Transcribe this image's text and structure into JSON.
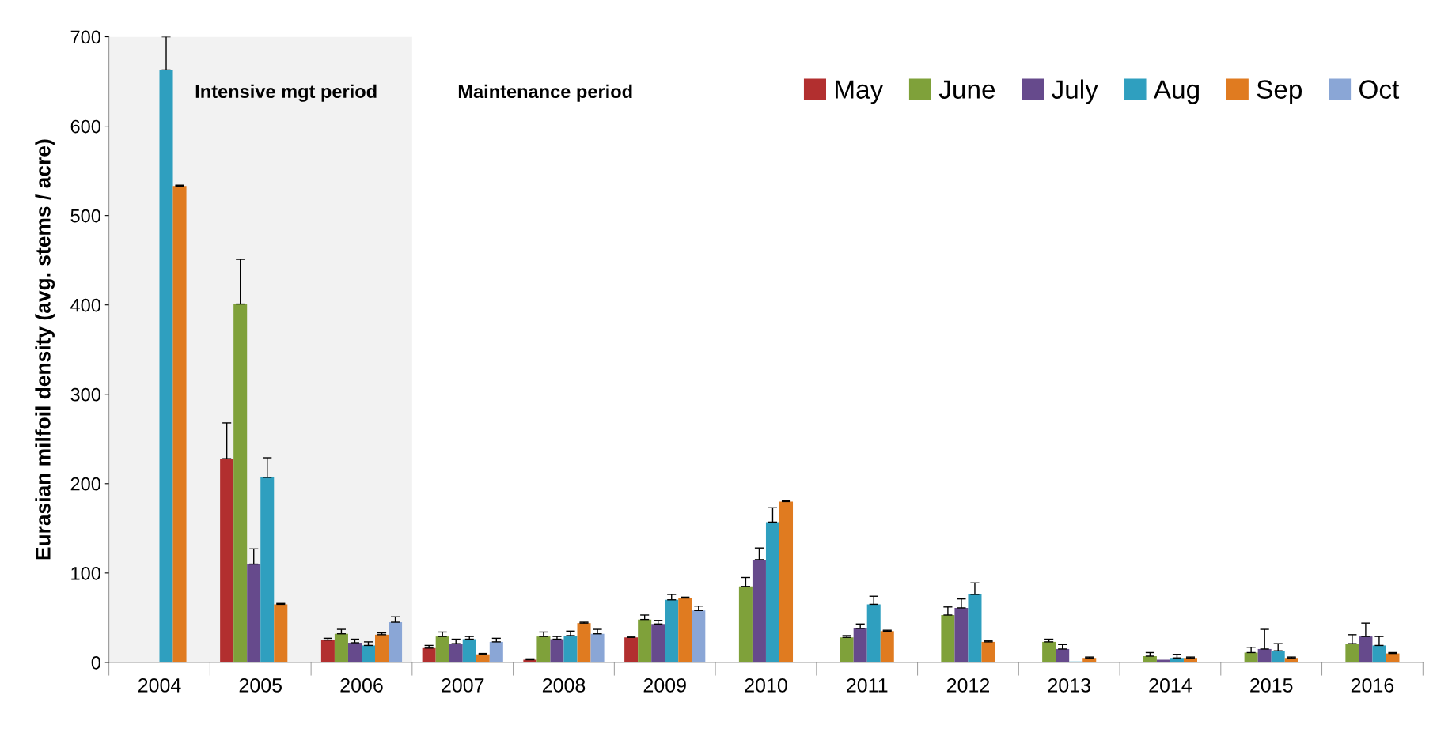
{
  "chart_data": {
    "type": "bar",
    "ylabel": "Eurasian milfoil density (avg. stems / acre)",
    "categories": [
      "2004",
      "2005",
      "2006",
      "2007",
      "2008",
      "2009",
      "2010",
      "2011",
      "2012",
      "2013",
      "2014",
      "2015",
      "2016"
    ],
    "series": [
      {
        "name": "May",
        "color": "#b22f2f",
        "values": [
          null,
          228,
          25,
          16,
          3,
          28,
          null,
          null,
          null,
          null,
          null,
          null,
          null
        ],
        "errors": [
          null,
          [
            228,
            268
          ],
          [
            25,
            27
          ],
          [
            16,
            19
          ],
          [
            3,
            4
          ],
          [
            28,
            29
          ],
          null,
          null,
          null,
          null,
          null,
          null,
          null
        ]
      },
      {
        "name": "June",
        "color": "#7fa13a",
        "values": [
          null,
          401,
          32,
          29,
          29,
          48,
          85,
          28,
          53,
          23,
          7,
          11,
          21
        ],
        "errors": [
          null,
          [
            401,
            451
          ],
          [
            32,
            37
          ],
          [
            29,
            34
          ],
          [
            29,
            34
          ],
          [
            48,
            53
          ],
          [
            85,
            95
          ],
          [
            28,
            30
          ],
          [
            53,
            62
          ],
          [
            23,
            26
          ],
          [
            7,
            11
          ],
          [
            11,
            17
          ],
          [
            21,
            31
          ]
        ]
      },
      {
        "name": "July",
        "color": "#664a8c",
        "values": [
          null,
          110,
          22,
          21,
          26,
          43,
          115,
          38,
          61,
          15,
          3,
          15,
          29
        ],
        "errors": [
          null,
          [
            110,
            127
          ],
          [
            22,
            26
          ],
          [
            21,
            26
          ],
          [
            26,
            29
          ],
          [
            43,
            47
          ],
          [
            115,
            128
          ],
          [
            38,
            43
          ],
          [
            61,
            71
          ],
          [
            15,
            20
          ],
          null,
          [
            15,
            37
          ],
          [
            29,
            44
          ]
        ]
      },
      {
        "name": "Aug",
        "color": "#2f9fbf",
        "values": [
          663,
          207,
          19,
          26,
          30,
          70,
          157,
          65,
          76,
          1,
          5,
          13,
          19
        ],
        "errors": [
          [
            663,
            700
          ],
          [
            207,
            229
          ],
          [
            19,
            23
          ],
          [
            26,
            29
          ],
          [
            30,
            35
          ],
          [
            70,
            76
          ],
          [
            157,
            173
          ],
          [
            65,
            74
          ],
          [
            76,
            89
          ],
          null,
          [
            5,
            9
          ],
          [
            13,
            21
          ],
          [
            19,
            29
          ]
        ]
      },
      {
        "name": "Sep",
        "color": "#e07b20",
        "values": [
          533,
          65,
          31,
          9,
          44,
          72,
          180,
          35,
          23,
          5,
          5,
          5,
          10
        ],
        "errors": [
          [
            533,
            534
          ],
          [
            65,
            66
          ],
          [
            31,
            33
          ],
          [
            9,
            10
          ],
          [
            44,
            45
          ],
          [
            72,
            73
          ],
          [
            180,
            181
          ],
          [
            35,
            36
          ],
          [
            23,
            24
          ],
          [
            5,
            6
          ],
          [
            5,
            6
          ],
          [
            5,
            6
          ],
          [
            10,
            11
          ]
        ]
      },
      {
        "name": "Oct",
        "color": "#8aa6d6",
        "values": [
          null,
          null,
          45,
          23,
          32,
          58,
          null,
          null,
          null,
          null,
          null,
          null,
          null
        ],
        "errors": [
          null,
          null,
          [
            45,
            51
          ],
          [
            23,
            27
          ],
          [
            32,
            37
          ],
          [
            58,
            63
          ],
          null,
          null,
          null,
          null,
          null,
          null,
          null
        ]
      }
    ],
    "ylim": [
      0,
      700
    ],
    "yticks": [
      0,
      100,
      200,
      300,
      400,
      500,
      600,
      700
    ],
    "bands": [
      {
        "axis": "x",
        "from": "2004",
        "to": "2006",
        "label": "Intensive mgt period",
        "color": "#f2f2f2"
      }
    ],
    "annotations": [
      "Maintenance period"
    ],
    "grid": false,
    "legend": "top right"
  }
}
